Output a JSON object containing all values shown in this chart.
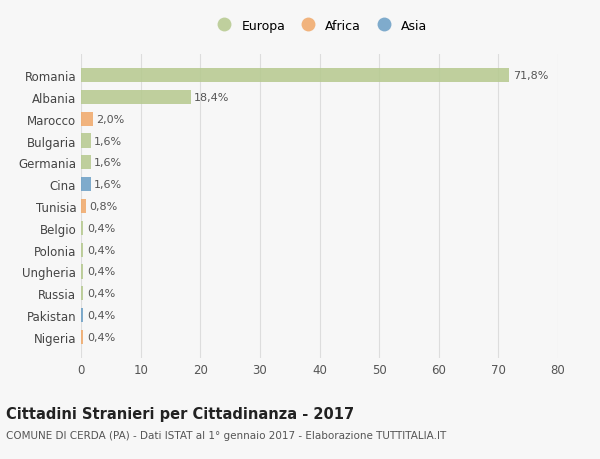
{
  "countries": [
    "Romania",
    "Albania",
    "Marocco",
    "Bulgaria",
    "Germania",
    "Cina",
    "Tunisia",
    "Belgio",
    "Polonia",
    "Ungheria",
    "Russia",
    "Pakistan",
    "Nigeria"
  ],
  "values": [
    71.8,
    18.4,
    2.0,
    1.6,
    1.6,
    1.6,
    0.8,
    0.4,
    0.4,
    0.4,
    0.4,
    0.4,
    0.4
  ],
  "labels": [
    "71,8%",
    "18,4%",
    "2,0%",
    "1,6%",
    "1,6%",
    "1,6%",
    "0,8%",
    "0,4%",
    "0,4%",
    "0,4%",
    "0,4%",
    "0,4%",
    "0,4%"
  ],
  "bar_colors": [
    "#b5c98e",
    "#b5c98e",
    "#f0a868",
    "#b5c98e",
    "#b5c98e",
    "#6a9ec5",
    "#f0a868",
    "#b5c98e",
    "#b5c98e",
    "#b5c98e",
    "#b5c98e",
    "#6a9ec5",
    "#f0a868"
  ],
  "xlim": [
    0,
    80
  ],
  "xticks": [
    0,
    10,
    20,
    30,
    40,
    50,
    60,
    70,
    80
  ],
  "title": "Cittadini Stranieri per Cittadinanza - 2017",
  "subtitle": "COMUNE DI CERDA (PA) - Dati ISTAT al 1° gennaio 2017 - Elaborazione TUTTITALIA.IT",
  "legend_labels": [
    "Europa",
    "Africa",
    "Asia"
  ],
  "legend_colors": [
    "#b5c98e",
    "#f0a868",
    "#6a9ec5"
  ],
  "background_color": "#f7f7f7",
  "grid_color": "#dddddd",
  "bar_height": 0.65,
  "title_fontsize": 10.5,
  "subtitle_fontsize": 7.5,
  "tick_fontsize": 8.5,
  "label_fontsize": 8.0
}
